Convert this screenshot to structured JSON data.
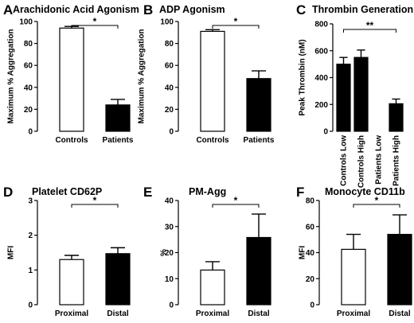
{
  "chart_data": [
    {
      "type": "bar",
      "letter": "A",
      "title": "Arachidonic Acid Agonism",
      "ylabel": "Maximum % Aggregation",
      "xlabel": "",
      "ylim": [
        0,
        100
      ],
      "yticks": [
        0,
        20,
        40,
        60,
        80,
        100
      ],
      "categories": [
        "Controls",
        "Patients"
      ],
      "values": [
        94,
        24
      ],
      "errors": [
        1.5,
        5
      ],
      "colors": [
        "#ffffff",
        "#000000"
      ],
      "significance": [
        {
          "from": 0,
          "to": 1,
          "label": "*"
        }
      ],
      "rotate_labels": false
    },
    {
      "type": "bar",
      "letter": "B",
      "title": "ADP Agonism",
      "ylabel": "Maximum % Aggregation",
      "xlabel": "",
      "ylim": [
        0,
        100
      ],
      "yticks": [
        0,
        20,
        40,
        60,
        80,
        100
      ],
      "categories": [
        "Controls",
        "Patients"
      ],
      "values": [
        91,
        48
      ],
      "errors": [
        1.5,
        7
      ],
      "colors": [
        "#ffffff",
        "#000000"
      ],
      "significance": [
        {
          "from": 0,
          "to": 1,
          "label": "*"
        }
      ],
      "rotate_labels": false
    },
    {
      "type": "bar",
      "letter": "C",
      "title": "Thrombin Generation",
      "ylabel": "Peak Thrombin (nM)",
      "xlabel": "",
      "ylim": [
        0,
        800
      ],
      "yticks": [
        0,
        200,
        400,
        600,
        800
      ],
      "categories": [
        "Controls Low",
        "Controls High",
        "Patients Low",
        "Patients High"
      ],
      "values": [
        500,
        550,
        0,
        205
      ],
      "errors": [
        50,
        55,
        0,
        35
      ],
      "colors": [
        "#000000",
        "#000000",
        "#000000",
        "#000000"
      ],
      "significance": [
        {
          "from": 0,
          "to": 3,
          "label": "**"
        }
      ],
      "rotate_labels": true
    },
    {
      "type": "bar",
      "letter": "D",
      "title": "Platelet CD62P",
      "ylabel": "MFI",
      "xlabel": "",
      "ylim": [
        0,
        3
      ],
      "yticks": [
        0,
        1,
        2,
        3
      ],
      "categories": [
        "Proximal",
        "Distal"
      ],
      "values": [
        1.3,
        1.47
      ],
      "errors": [
        0.12,
        0.17
      ],
      "colors": [
        "#ffffff",
        "#000000"
      ],
      "significance": [
        {
          "from": 0,
          "to": 1,
          "label": "*"
        }
      ],
      "rotate_labels": false
    },
    {
      "type": "bar",
      "letter": "E",
      "title": "PM-Agg",
      "ylabel": "%",
      "xlabel": "",
      "ylim": [
        0,
        40
      ],
      "yticks": [
        0,
        10,
        20,
        30,
        40
      ],
      "categories": [
        "Proximal",
        "Distal"
      ],
      "values": [
        13.3,
        25.8
      ],
      "errors": [
        3.2,
        9
      ],
      "colors": [
        "#ffffff",
        "#000000"
      ],
      "significance": [
        {
          "from": 0,
          "to": 1,
          "label": "*"
        }
      ],
      "rotate_labels": false
    },
    {
      "type": "bar",
      "letter": "F",
      "title": "Monocyte CD11b",
      "ylabel": "MFI",
      "xlabel": "",
      "ylim": [
        0,
        80
      ],
      "yticks": [
        0,
        20,
        40,
        60,
        80
      ],
      "categories": [
        "Proximal",
        "Distal"
      ],
      "values": [
        42.5,
        54
      ],
      "errors": [
        11.5,
        15
      ],
      "colors": [
        "#ffffff",
        "#000000"
      ],
      "significance": [
        {
          "from": 0,
          "to": 1,
          "label": "*"
        }
      ],
      "rotate_labels": false
    }
  ]
}
